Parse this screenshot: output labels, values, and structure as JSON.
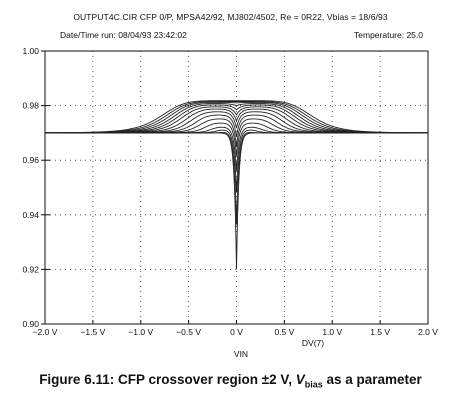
{
  "header": {
    "title": "OUTPUT4C.CIR CFP 0/P, MPSA42/92, MJ802/4502, Re = 0R22, Vbias = 18/6/93",
    "datetime": "Date/Time run: 08/04/93 23:42:02",
    "temperature": "Temperature: 25.0"
  },
  "caption": {
    "prefix": "Figure 6.11:  CFP crossover region ±2 V, ",
    "var": "V",
    "sub": "bias",
    "suffix": " as a parameter"
  },
  "chart_data": {
    "type": "line",
    "xlabel": "VIN",
    "trace_label": "DV(7)",
    "xlim": [
      -2.0,
      2.0
    ],
    "ylim": [
      0.9,
      1.0
    ],
    "x_ticks": [
      -2.0,
      -1.5,
      -1.0,
      -0.5,
      0.0,
      0.5,
      1.0,
      1.5,
      2.0
    ],
    "x_tick_labels": [
      "−2.0 V",
      "−1.5 V",
      "−1.0 V",
      "−0.5 V",
      "0 V",
      "0.5 V",
      "1.0 V",
      "1.5 V",
      "2.0 V"
    ],
    "y_ticks": [
      0.9,
      0.92,
      0.94,
      0.96,
      0.98,
      1.0
    ],
    "y_tick_labels": [
      "0.90",
      "0.92",
      "0.94",
      "0.96",
      "0.98",
      "1.00"
    ],
    "grid": "dotted",
    "baseline": 0.97,
    "series": [
      {
        "peak": 0.9818,
        "dip": 0.0,
        "shoulder_width": 0.8
      },
      {
        "peak": 0.9815,
        "dip": 0.0,
        "shoulder_width": 0.76
      },
      {
        "peak": 0.9812,
        "dip": 0.0002,
        "shoulder_width": 0.72
      },
      {
        "peak": 0.9808,
        "dip": 0.0008,
        "shoulder_width": 0.68
      },
      {
        "peak": 0.9803,
        "dip": 0.0018,
        "shoulder_width": 0.64
      },
      {
        "peak": 0.9796,
        "dip": 0.003,
        "shoulder_width": 0.6
      },
      {
        "peak": 0.9788,
        "dip": 0.0044,
        "shoulder_width": 0.55
      },
      {
        "peak": 0.9778,
        "dip": 0.006,
        "shoulder_width": 0.5
      },
      {
        "peak": 0.9766,
        "dip": 0.008,
        "shoulder_width": 0.45
      },
      {
        "peak": 0.9752,
        "dip": 0.01,
        "shoulder_width": 0.4
      },
      {
        "peak": 0.9737,
        "dip": 0.012,
        "shoulder_width": 0.34
      },
      {
        "peak": 0.9722,
        "dip": 0.016,
        "shoulder_width": 0.28
      },
      {
        "peak": 0.9712,
        "dip": 0.023,
        "shoulder_width": 0.22
      },
      {
        "peak": 0.9704,
        "dip": 0.034,
        "shoulder_width": 0.16
      },
      {
        "peak": 0.97,
        "dip": 0.05,
        "shoulder_width": 0.1
      }
    ]
  }
}
